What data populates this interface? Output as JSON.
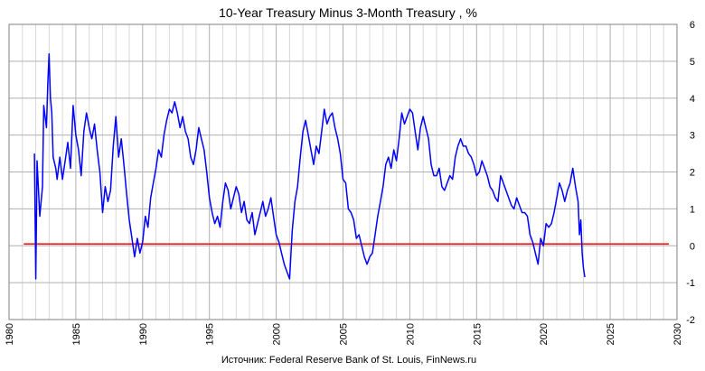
{
  "chart_data": {
    "type": "line",
    "title": "10-Year Treasury Minus 3-Month Treasury  , %",
    "source": "Источник: Federal Reserve Bank of St. Louis, FinNews.ru",
    "xlim": [
      1980,
      2030
    ],
    "ylim": [
      -2,
      6
    ],
    "x_ticks": [
      1980,
      1985,
      1990,
      1995,
      2000,
      2005,
      2010,
      2015,
      2020,
      2025,
      2030
    ],
    "y_ticks": [
      6,
      5,
      4,
      3,
      2,
      1,
      0,
      -1,
      -2
    ],
    "grid": true,
    "colors": {
      "series": "#0000ff",
      "zero_line": "#ff0000",
      "grid": "#b0b0b0"
    },
    "zero_line": {
      "x": [
        1981.1,
        2029.4
      ],
      "y": 0.05
    },
    "series": [
      {
        "points": [
          [
            1981.9,
            2.5
          ],
          [
            1982.0,
            -0.9
          ],
          [
            1982.1,
            2.3
          ],
          [
            1982.3,
            0.8
          ],
          [
            1982.5,
            1.6
          ],
          [
            1982.6,
            3.8
          ],
          [
            1982.8,
            3.2
          ],
          [
            1982.9,
            4.4
          ],
          [
            1983.0,
            5.2
          ],
          [
            1983.1,
            4.0
          ],
          [
            1983.2,
            3.6
          ],
          [
            1983.3,
            2.4
          ],
          [
            1983.5,
            2.1
          ],
          [
            1983.6,
            1.8
          ],
          [
            1983.8,
            2.4
          ],
          [
            1984.0,
            1.8
          ],
          [
            1984.2,
            2.3
          ],
          [
            1984.4,
            2.8
          ],
          [
            1984.6,
            2.1
          ],
          [
            1984.8,
            3.8
          ],
          [
            1985.0,
            3.0
          ],
          [
            1985.2,
            2.6
          ],
          [
            1985.4,
            1.9
          ],
          [
            1985.6,
            3.1
          ],
          [
            1985.8,
            3.6
          ],
          [
            1986.0,
            3.2
          ],
          [
            1986.2,
            2.9
          ],
          [
            1986.4,
            3.3
          ],
          [
            1986.6,
            2.6
          ],
          [
            1986.8,
            2.0
          ],
          [
            1987.0,
            0.9
          ],
          [
            1987.2,
            1.6
          ],
          [
            1987.4,
            1.2
          ],
          [
            1987.6,
            1.5
          ],
          [
            1987.8,
            2.7
          ],
          [
            1988.0,
            3.5
          ],
          [
            1988.2,
            2.4
          ],
          [
            1988.4,
            2.9
          ],
          [
            1988.6,
            2.2
          ],
          [
            1988.8,
            1.4
          ],
          [
            1989.0,
            0.7
          ],
          [
            1989.2,
            0.2
          ],
          [
            1989.4,
            -0.3
          ],
          [
            1989.6,
            0.2
          ],
          [
            1989.8,
            -0.2
          ],
          [
            1990.0,
            0.1
          ],
          [
            1990.2,
            0.8
          ],
          [
            1990.4,
            0.5
          ],
          [
            1990.6,
            1.3
          ],
          [
            1990.8,
            1.7
          ],
          [
            1991.0,
            2.1
          ],
          [
            1991.2,
            2.6
          ],
          [
            1991.4,
            2.4
          ],
          [
            1991.6,
            3.0
          ],
          [
            1991.8,
            3.4
          ],
          [
            1992.0,
            3.7
          ],
          [
            1992.2,
            3.6
          ],
          [
            1992.4,
            3.9
          ],
          [
            1992.6,
            3.6
          ],
          [
            1992.8,
            3.2
          ],
          [
            1993.0,
            3.5
          ],
          [
            1993.2,
            3.1
          ],
          [
            1993.4,
            2.9
          ],
          [
            1993.6,
            2.4
          ],
          [
            1993.8,
            2.2
          ],
          [
            1994.0,
            2.6
          ],
          [
            1994.2,
            3.2
          ],
          [
            1994.4,
            2.9
          ],
          [
            1994.6,
            2.6
          ],
          [
            1994.8,
            2.0
          ],
          [
            1995.0,
            1.3
          ],
          [
            1995.2,
            0.9
          ],
          [
            1995.4,
            0.6
          ],
          [
            1995.6,
            0.8
          ],
          [
            1995.8,
            0.5
          ],
          [
            1996.0,
            1.2
          ],
          [
            1996.2,
            1.7
          ],
          [
            1996.4,
            1.5
          ],
          [
            1996.6,
            1.0
          ],
          [
            1996.8,
            1.3
          ],
          [
            1997.0,
            1.6
          ],
          [
            1997.2,
            1.4
          ],
          [
            1997.4,
            0.9
          ],
          [
            1997.6,
            1.2
          ],
          [
            1997.8,
            0.7
          ],
          [
            1998.0,
            0.6
          ],
          [
            1998.2,
            0.9
          ],
          [
            1998.4,
            0.3
          ],
          [
            1998.6,
            0.6
          ],
          [
            1998.8,
            0.9
          ],
          [
            1999.0,
            1.2
          ],
          [
            1999.2,
            0.8
          ],
          [
            1999.4,
            1.0
          ],
          [
            1999.6,
            1.3
          ],
          [
            1999.8,
            0.8
          ],
          [
            2000.0,
            0.3
          ],
          [
            2000.2,
            0.1
          ],
          [
            2000.4,
            -0.2
          ],
          [
            2000.6,
            -0.5
          ],
          [
            2000.8,
            -0.7
          ],
          [
            2001.0,
            -0.9
          ],
          [
            2001.2,
            0.4
          ],
          [
            2001.4,
            1.2
          ],
          [
            2001.6,
            1.6
          ],
          [
            2001.8,
            2.4
          ],
          [
            2002.0,
            3.1
          ],
          [
            2002.2,
            3.4
          ],
          [
            2002.4,
            3.0
          ],
          [
            2002.6,
            2.6
          ],
          [
            2002.8,
            2.2
          ],
          [
            2003.0,
            2.7
          ],
          [
            2003.2,
            2.5
          ],
          [
            2003.4,
            3.1
          ],
          [
            2003.6,
            3.7
          ],
          [
            2003.8,
            3.3
          ],
          [
            2004.0,
            3.5
          ],
          [
            2004.2,
            3.6
          ],
          [
            2004.4,
            3.2
          ],
          [
            2004.6,
            2.9
          ],
          [
            2004.8,
            2.5
          ],
          [
            2005.0,
            1.8
          ],
          [
            2005.2,
            1.7
          ],
          [
            2005.4,
            1.0
          ],
          [
            2005.6,
            0.9
          ],
          [
            2005.8,
            0.7
          ],
          [
            2006.0,
            0.2
          ],
          [
            2006.2,
            0.3
          ],
          [
            2006.4,
            0.0
          ],
          [
            2006.6,
            -0.3
          ],
          [
            2006.8,
            -0.5
          ],
          [
            2007.0,
            -0.3
          ],
          [
            2007.2,
            -0.2
          ],
          [
            2007.4,
            0.3
          ],
          [
            2007.6,
            0.8
          ],
          [
            2007.8,
            1.2
          ],
          [
            2008.0,
            1.6
          ],
          [
            2008.2,
            2.2
          ],
          [
            2008.4,
            2.4
          ],
          [
            2008.6,
            2.1
          ],
          [
            2008.8,
            2.6
          ],
          [
            2009.0,
            2.3
          ],
          [
            2009.2,
            2.9
          ],
          [
            2009.4,
            3.6
          ],
          [
            2009.6,
            3.3
          ],
          [
            2009.8,
            3.5
          ],
          [
            2010.0,
            3.7
          ],
          [
            2010.2,
            3.6
          ],
          [
            2010.4,
            3.1
          ],
          [
            2010.6,
            2.6
          ],
          [
            2010.8,
            3.2
          ],
          [
            2011.0,
            3.5
          ],
          [
            2011.2,
            3.2
          ],
          [
            2011.4,
            2.9
          ],
          [
            2011.6,
            2.2
          ],
          [
            2011.8,
            1.9
          ],
          [
            2012.0,
            1.9
          ],
          [
            2012.2,
            2.1
          ],
          [
            2012.4,
            1.6
          ],
          [
            2012.6,
            1.5
          ],
          [
            2012.8,
            1.7
          ],
          [
            2013.0,
            1.9
          ],
          [
            2013.2,
            1.8
          ],
          [
            2013.4,
            2.4
          ],
          [
            2013.6,
            2.7
          ],
          [
            2013.8,
            2.9
          ],
          [
            2014.0,
            2.7
          ],
          [
            2014.2,
            2.7
          ],
          [
            2014.4,
            2.5
          ],
          [
            2014.6,
            2.4
          ],
          [
            2014.8,
            2.2
          ],
          [
            2015.0,
            1.9
          ],
          [
            2015.2,
            2.0
          ],
          [
            2015.4,
            2.3
          ],
          [
            2015.6,
            2.1
          ],
          [
            2015.8,
            1.9
          ],
          [
            2016.0,
            1.6
          ],
          [
            2016.2,
            1.5
          ],
          [
            2016.4,
            1.3
          ],
          [
            2016.6,
            1.2
          ],
          [
            2016.8,
            1.9
          ],
          [
            2017.0,
            1.7
          ],
          [
            2017.2,
            1.5
          ],
          [
            2017.4,
            1.3
          ],
          [
            2017.6,
            1.1
          ],
          [
            2017.8,
            1.0
          ],
          [
            2018.0,
            1.3
          ],
          [
            2018.2,
            1.1
          ],
          [
            2018.4,
            0.9
          ],
          [
            2018.6,
            0.9
          ],
          [
            2018.8,
            0.8
          ],
          [
            2019.0,
            0.3
          ],
          [
            2019.2,
            0.1
          ],
          [
            2019.4,
            -0.2
          ],
          [
            2019.6,
            -0.5
          ],
          [
            2019.8,
            0.2
          ],
          [
            2020.0,
            0.0
          ],
          [
            2020.2,
            0.6
          ],
          [
            2020.4,
            0.5
          ],
          [
            2020.6,
            0.6
          ],
          [
            2020.8,
            0.9
          ],
          [
            2021.0,
            1.3
          ],
          [
            2021.2,
            1.7
          ],
          [
            2021.4,
            1.5
          ],
          [
            2021.6,
            1.2
          ],
          [
            2021.8,
            1.5
          ],
          [
            2022.0,
            1.7
          ],
          [
            2022.2,
            2.1
          ],
          [
            2022.4,
            1.6
          ],
          [
            2022.6,
            1.2
          ],
          [
            2022.7,
            0.3
          ],
          [
            2022.8,
            0.7
          ],
          [
            2022.9,
            -0.2
          ],
          [
            2023.0,
            -0.6
          ],
          [
            2023.1,
            -0.85
          ]
        ]
      }
    ]
  }
}
